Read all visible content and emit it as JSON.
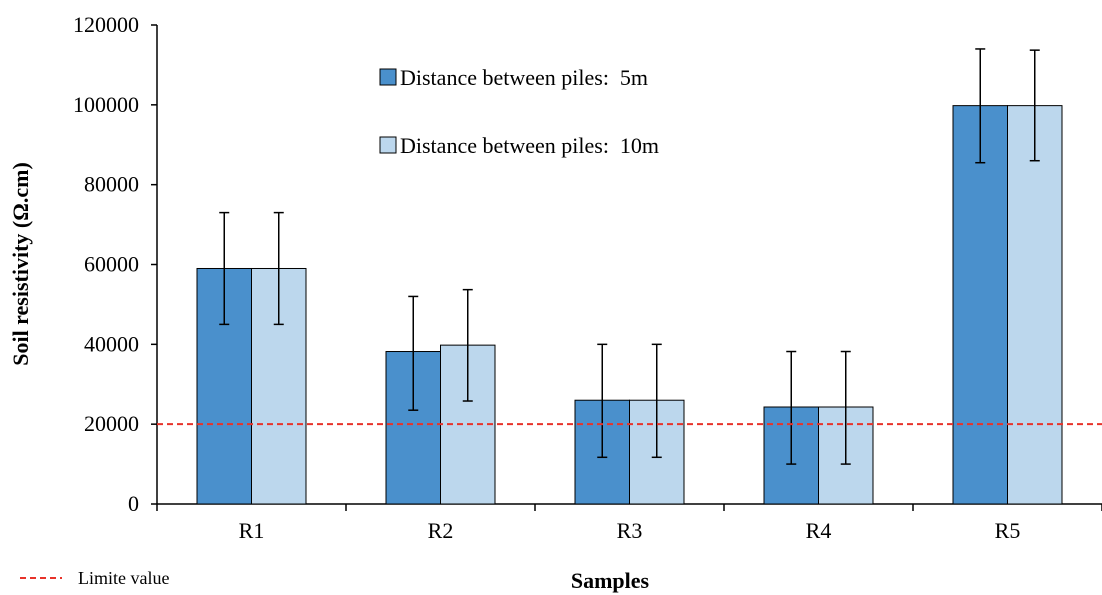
{
  "chart_data": {
    "type": "bar",
    "categories": [
      "R1",
      "R2",
      "R3",
      "R4",
      "R5"
    ],
    "series": [
      {
        "name": "Distance between piles:  5m",
        "color": "#4a90cc",
        "values": [
          59000,
          38200,
          26000,
          24300,
          99800
        ],
        "error_low": [
          45000,
          23500,
          11700,
          10000,
          85500
        ],
        "error_high": [
          73000,
          52000,
          40000,
          38200,
          114000
        ]
      },
      {
        "name": "Distance between piles:  10m",
        "color": "#bcd7ed",
        "values": [
          59000,
          39800,
          26000,
          24300,
          99800
        ],
        "error_low": [
          45000,
          25800,
          11700,
          10000,
          86000
        ],
        "error_high": [
          73000,
          53700,
          40000,
          38200,
          113700
        ]
      }
    ],
    "xlabel": "Samples",
    "ylabel": "Soil resistivity  (Ω.cm)",
    "ylim": [
      0,
      120000
    ],
    "yticks": [
      "0",
      "20000",
      "40000",
      "60000",
      "80000",
      "100000",
      "120000"
    ],
    "grid": false,
    "legend_position": "top-center",
    "reference_line": {
      "value": 20000,
      "label": "Limite value",
      "color": "#e8332a"
    }
  }
}
